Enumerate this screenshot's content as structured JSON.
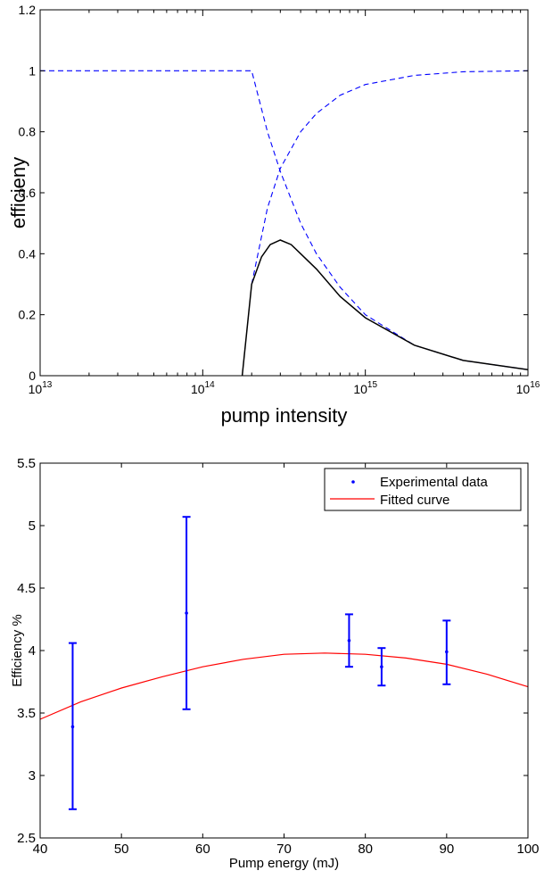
{
  "chart_data": [
    {
      "type": "line",
      "title": "",
      "xlabel": "pump intensity",
      "ylabel": "efficieny",
      "x_scale": "log",
      "xlim": [
        10000000000000.0,
        1e+16
      ],
      "ylim": [
        0,
        1.2
      ],
      "x_ticks": [
        {
          "value": 10000000000000.0,
          "base": "10",
          "exp": "13"
        },
        {
          "value": 100000000000000.0,
          "base": "10",
          "exp": "14"
        },
        {
          "value": 1000000000000000.0,
          "base": "10",
          "exp": "15"
        },
        {
          "value": 1e+16,
          "base": "10",
          "exp": "16"
        }
      ],
      "y_ticks": [
        "0",
        "0.2",
        "0.4",
        "0.6",
        "0.8",
        "1",
        "1.2"
      ],
      "grid": false,
      "series": [
        {
          "style": "dashed",
          "color": "#0000ff",
          "x": [
            10000000000000.0,
            200000000000000.0,
            250000000000000.0,
            300000000000000.0,
            400000000000000.0,
            500000000000000.0,
            700000000000000.0,
            1000000000000000.0,
            2000000000000000.0,
            4000000000000000.0,
            1e+16
          ],
          "y": [
            1.0,
            1.0,
            0.8,
            0.67,
            0.5,
            0.4,
            0.29,
            0.2,
            0.1,
            0.05,
            0.02
          ]
        },
        {
          "style": "dashed",
          "color": "#0000ff",
          "x": [
            200000000000000.0,
            250000000000000.0,
            300000000000000.0,
            400000000000000.0,
            500000000000000.0,
            700000000000000.0,
            1000000000000000.0,
            2000000000000000.0,
            4000000000000000.0,
            1e+16
          ],
          "y": [
            0.3,
            0.55,
            0.68,
            0.8,
            0.86,
            0.92,
            0.955,
            0.985,
            0.997,
            1.0
          ]
        },
        {
          "style": "solid",
          "color": "#000000",
          "x": [
            175000000000000.0,
            200000000000000.0,
            230000000000000.0,
            260000000000000.0,
            300000000000000.0,
            350000000000000.0,
            400000000000000.0,
            500000000000000.0,
            700000000000000.0,
            1000000000000000.0,
            2000000000000000.0,
            4000000000000000.0,
            1e+16
          ],
          "y": [
            0.0,
            0.3,
            0.39,
            0.43,
            0.445,
            0.43,
            0.4,
            0.35,
            0.26,
            0.19,
            0.1,
            0.05,
            0.02
          ]
        }
      ]
    },
    {
      "type": "scatter",
      "title": "",
      "xlabel": "Pump energy (mJ)",
      "ylabel": "Efficiency %",
      "xlim": [
        40,
        100
      ],
      "ylim": [
        2.5,
        5.5
      ],
      "x_ticks": [
        "40",
        "50",
        "60",
        "70",
        "80",
        "90",
        "100"
      ],
      "y_ticks": [
        "2.5",
        "3",
        "3.5",
        "4",
        "4.5",
        "5",
        "5.5"
      ],
      "grid": false,
      "legend": {
        "position": "top-right",
        "entries": [
          "Experimental data",
          "Fitted curve"
        ]
      },
      "series": [
        {
          "name": "Experimental data",
          "color": "#0000ff",
          "points": [
            {
              "x": 44,
              "y": 3.39,
              "low": 2.73,
              "high": 4.06
            },
            {
              "x": 58,
              "y": 4.3,
              "low": 3.53,
              "high": 5.07
            },
            {
              "x": 78,
              "y": 4.08,
              "low": 3.87,
              "high": 4.29
            },
            {
              "x": 82,
              "y": 3.87,
              "low": 3.72,
              "high": 4.02
            },
            {
              "x": 90,
              "y": 3.99,
              "low": 3.73,
              "high": 4.24
            }
          ]
        },
        {
          "name": "Fitted curve",
          "color": "#ff0000",
          "x": [
            40,
            45,
            50,
            55,
            60,
            65,
            70,
            75,
            80,
            85,
            90,
            95,
            100
          ],
          "y": [
            3.45,
            3.59,
            3.7,
            3.79,
            3.87,
            3.93,
            3.97,
            3.98,
            3.97,
            3.94,
            3.89,
            3.81,
            3.71
          ]
        }
      ]
    }
  ]
}
